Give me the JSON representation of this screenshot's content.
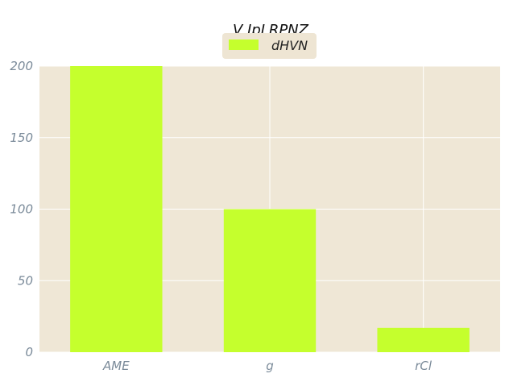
{
  "chart_data": {
    "type": "bar",
    "title": "V IpLRPNZ",
    "categories": [
      "AME",
      "g",
      "rCl"
    ],
    "series": [
      {
        "name": "dHVN",
        "values": [
          200,
          100,
          17
        ]
      }
    ],
    "xlabel": "",
    "ylabel": "",
    "ylim": [
      0,
      200
    ],
    "yticks": [
      "0",
      "50",
      "100",
      "150",
      "200"
    ],
    "grid": true,
    "legend": "top-center",
    "colors": {
      "bar": "#c5ff2d",
      "plot_bg": "#efe7d6",
      "grid": "#ffffff",
      "legend_bg": "#eee5d3"
    }
  }
}
